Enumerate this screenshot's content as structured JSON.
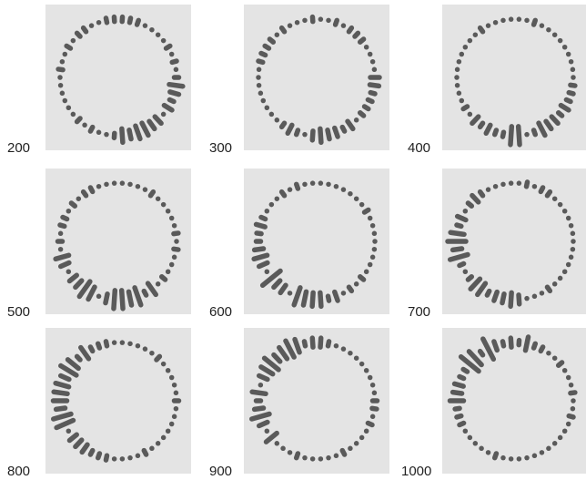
{
  "panels": [
    {
      "label": "200"
    },
    {
      "label": "300"
    },
    {
      "label": "400"
    },
    {
      "label": "500"
    },
    {
      "label": "600"
    },
    {
      "label": "700"
    },
    {
      "label": "800"
    },
    {
      "label": "900"
    },
    {
      "label": "1000"
    }
  ]
}
